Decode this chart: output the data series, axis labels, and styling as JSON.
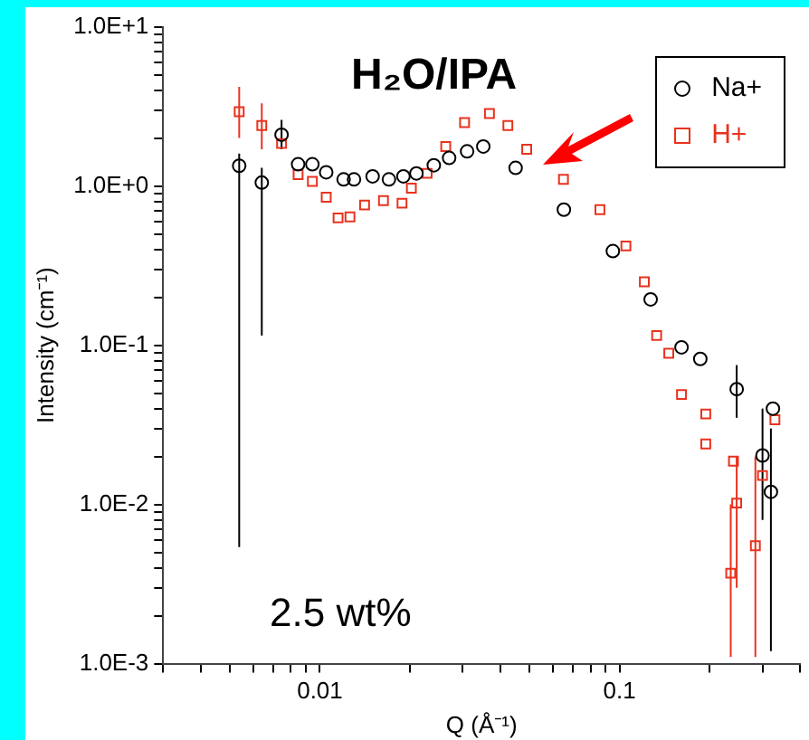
{
  "chart_data": {
    "type": "scatter",
    "xlabel": "Q (Å⁻¹)",
    "ylabel": "Intensity (cm⁻¹)",
    "log": "xy",
    "grid": false,
    "legend": "top right",
    "xlim": [
      0.003,
      0.4
    ],
    "xticks": [
      {
        "value": 0.003,
        "label": null
      },
      {
        "value": 0.004,
        "label": null
      },
      {
        "value": 0.005,
        "label": null
      },
      {
        "value": 0.006,
        "label": null
      },
      {
        "value": 0.007,
        "label": null
      },
      {
        "value": 0.008,
        "label": null
      },
      {
        "value": 0.009,
        "label": null
      },
      0.01,
      {
        "value": 0.02,
        "label": null
      },
      {
        "value": 0.03,
        "label": null
      },
      {
        "value": 0.04,
        "label": null
      },
      {
        "value": 0.05,
        "label": null
      },
      {
        "value": 0.06,
        "label": null
      },
      {
        "value": 0.07,
        "label": null
      },
      {
        "value": 0.08,
        "label": null
      },
      {
        "value": 0.09,
        "label": null
      },
      0.1,
      {
        "value": 0.2,
        "label": null
      },
      {
        "value": 0.3,
        "label": null
      },
      {
        "value": 0.4,
        "label": null
      }
    ],
    "ylim": [
      0.001,
      10
    ],
    "yticks": [
      {
        "value": 0.001,
        "label": "1.0E-3"
      },
      {
        "value": 0.002,
        "label": null
      },
      {
        "value": 0.003,
        "label": null
      },
      {
        "value": 0.004,
        "label": null
      },
      {
        "value": 0.005,
        "label": null
      },
      {
        "value": 0.006,
        "label": null
      },
      {
        "value": 0.007,
        "label": null
      },
      {
        "value": 0.008,
        "label": null
      },
      {
        "value": 0.009,
        "label": null
      },
      {
        "value": 0.01,
        "label": "1.0E-2"
      },
      {
        "value": 0.02,
        "label": null
      },
      {
        "value": 0.03,
        "label": null
      },
      {
        "value": 0.04,
        "label": null
      },
      {
        "value": 0.05,
        "label": null
      },
      {
        "value": 0.06,
        "label": null
      },
      {
        "value": 0.07,
        "label": null
      },
      {
        "value": 0.08,
        "label": null
      },
      {
        "value": 0.09,
        "label": null
      },
      {
        "value": 0.1,
        "label": "1.0E-1"
      },
      {
        "value": 0.2,
        "label": null
      },
      {
        "value": 0.3,
        "label": null
      },
      {
        "value": 0.4,
        "label": null
      },
      {
        "value": 0.5,
        "label": null
      },
      {
        "value": 0.6,
        "label": null
      },
      {
        "value": 0.7,
        "label": null
      },
      {
        "value": 0.8,
        "label": null
      },
      {
        "value": 0.9,
        "label": null
      },
      {
        "value": 1,
        "label": "1.0E+0"
      },
      {
        "value": 2,
        "label": null
      },
      {
        "value": 3,
        "label": null
      },
      {
        "value": 4,
        "label": null
      },
      {
        "value": 5,
        "label": null
      },
      {
        "value": 6,
        "label": null
      },
      {
        "value": 7,
        "label": null
      },
      {
        "value": 8,
        "label": null
      },
      {
        "value": 9,
        "label": null
      },
      {
        "value": 10,
        "label": "1.0E+1"
      }
    ],
    "annotations": [
      "H₂O/IPA",
      "2.5 wt%"
    ],
    "series": [
      {
        "name": "Na+",
        "color": "#000000",
        "marker": "circle",
        "x": [
          0.00538,
          0.0064,
          0.00745,
          0.00846,
          0.00944,
          0.0105,
          0.012,
          0.013,
          0.015,
          0.017,
          0.019,
          0.021,
          0.024,
          0.027,
          0.031,
          0.0351,
          0.045,
          0.0652,
          0.095,
          0.127,
          0.161,
          0.186,
          0.246,
          0.3,
          0.32,
          0.325
        ],
        "values": [
          1.34,
          1.05,
          2.1,
          1.37,
          1.37,
          1.22,
          1.1,
          1.1,
          1.15,
          1.1,
          1.15,
          1.2,
          1.35,
          1.5,
          1.65,
          1.77,
          1.3,
          0.71,
          0.39,
          0.194,
          0.097,
          0.082,
          0.053,
          0.0203,
          0.012,
          0.04
        ],
        "errors": [
          [
            0.0054,
            1.6
          ],
          [
            0.115,
            1.3
          ],
          [
            1.7,
            2.6
          ],
          null,
          null,
          null,
          null,
          null,
          null,
          null,
          null,
          null,
          null,
          null,
          null,
          null,
          null,
          null,
          null,
          null,
          null,
          null,
          [
            0.035,
            0.075
          ],
          [
            0.008,
            0.04
          ],
          [
            0.0012,
            0.03
          ],
          null
        ]
      },
      {
        "name": "H+",
        "color": "#e8321e",
        "marker": "square",
        "x": [
          0.00538,
          0.0064,
          0.00745,
          0.00846,
          0.00944,
          0.0105,
          0.0115,
          0.0126,
          0.0141,
          0.0163,
          0.0188,
          0.0202,
          0.0228,
          0.0263,
          0.0304,
          0.0368,
          0.0424,
          0.049,
          0.065,
          0.086,
          0.105,
          0.121,
          0.133,
          0.146,
          0.161,
          0.194,
          0.194,
          0.24,
          0.246,
          0.235,
          0.284,
          0.3,
          0.33
        ],
        "values": [
          2.93,
          2.4,
          1.85,
          1.18,
          1.07,
          0.85,
          0.63,
          0.64,
          0.76,
          0.81,
          0.78,
          0.97,
          1.2,
          1.77,
          2.5,
          2.85,
          2.4,
          1.7,
          1.1,
          0.71,
          0.42,
          0.25,
          0.115,
          0.089,
          0.049,
          0.037,
          0.024,
          0.0187,
          0.0102,
          0.0037,
          0.0055,
          0.0152,
          0.034
        ],
        "errors": [
          [
            2.0,
            4.2
          ],
          [
            1.7,
            3.3
          ],
          null,
          null,
          null,
          null,
          null,
          null,
          null,
          null,
          null,
          null,
          null,
          null,
          null,
          null,
          null,
          null,
          null,
          null,
          null,
          null,
          null,
          null,
          null,
          null,
          null,
          null,
          [
            0.003,
            0.02
          ],
          [
            0.0011,
            0.01
          ],
          [
            0.0011,
            0.02
          ],
          null,
          null
        ]
      }
    ]
  }
}
